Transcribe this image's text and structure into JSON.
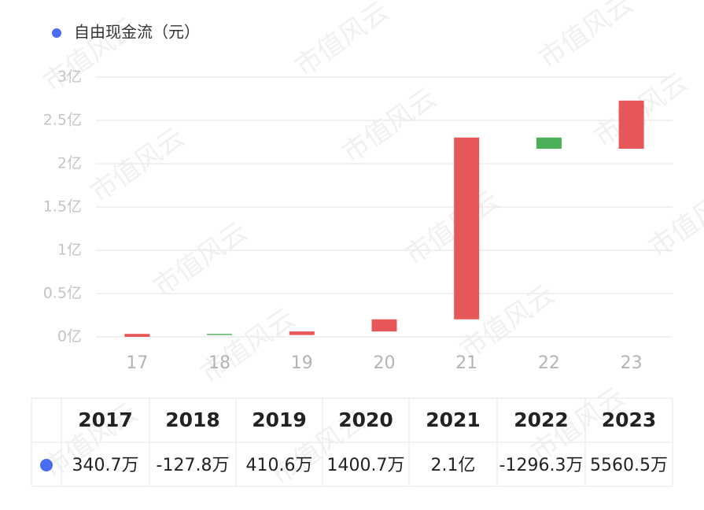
{
  "chart_data": {
    "type": "waterfall",
    "watermark": "市值风云",
    "categories": [
      "17",
      "18",
      "19",
      "20",
      "21",
      "22",
      "23"
    ],
    "table_header": [
      "2017",
      "2018",
      "2019",
      "2020",
      "2021",
      "2022",
      "2023"
    ],
    "series": [
      {
        "name": "自由现金流（元）",
        "color": "#4a6cf0",
        "values": [
          0.03407,
          -0.01278,
          0.04106,
          0.14007,
          2.1,
          -0.12963,
          0.55605
        ],
        "value_labels": [
          "340.7万",
          "-127.8万",
          "410.6万",
          "1400.7万",
          "2.1亿",
          "-1296.3万",
          "5560.5万"
        ]
      }
    ],
    "up_color": "#e85757",
    "down_color": "#4caf5a",
    "ylim": [
      0,
      3
    ],
    "yticks": [
      {
        "value": 0,
        "label": "0亿"
      },
      {
        "value": 0.5,
        "label": "0.5亿"
      },
      {
        "value": 1,
        "label": "1亿"
      },
      {
        "value": 1.5,
        "label": "1.5亿"
      },
      {
        "value": 2,
        "label": "2亿"
      },
      {
        "value": 2.5,
        "label": "2.5亿"
      },
      {
        "value": 3,
        "label": "3亿"
      }
    ],
    "grid": true
  }
}
